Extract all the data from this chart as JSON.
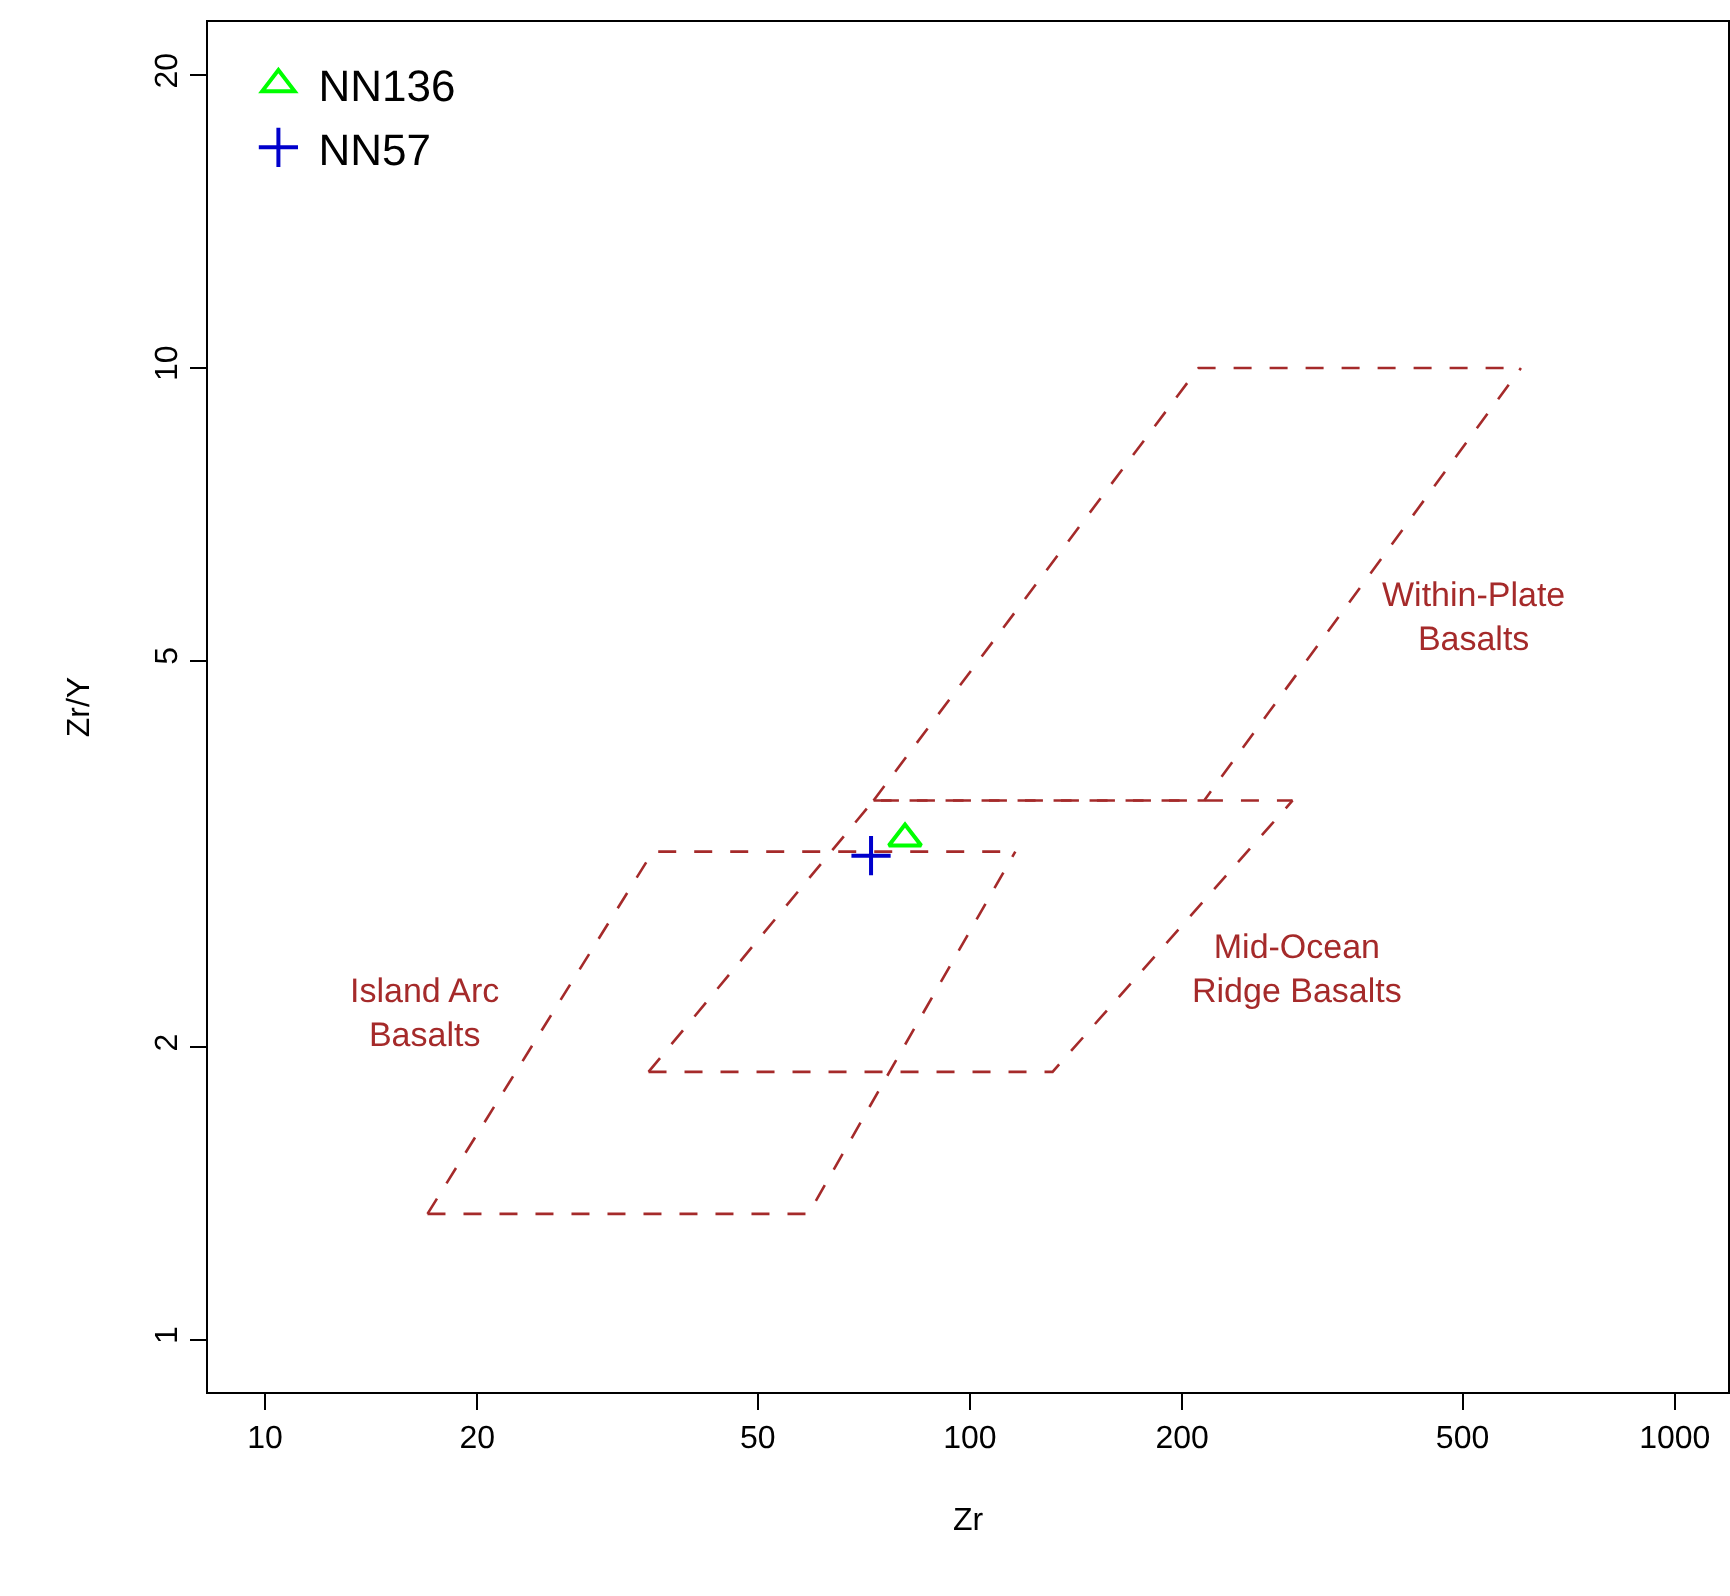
{
  "chart_data": {
    "type": "line",
    "xlabel": "Zr",
    "ylabel": "Zr/Y",
    "log": "xy",
    "grid": false,
    "legend": "top left",
    "xlim": [
      8.3,
      1190
    ],
    "ylim": [
      0.884,
      22.7
    ],
    "xticks": [
      10,
      20,
      50,
      100,
      200,
      500,
      1000
    ],
    "yticks": [
      1,
      2,
      5,
      10,
      20
    ],
    "series": [
      {
        "name": "Island Arc\nBasalts",
        "color": "#a52a2a",
        "line_style": "dashed",
        "marker": "none",
        "x": [
          17,
          35.5,
          116
        ],
        "values": [
          1.348,
          3.18,
          3.18
        ]
      },
      {
        "color": "#a52a2a",
        "line_style": "dashed",
        "marker": "none",
        "x": [
          17,
          59,
          116
        ],
        "values": [
          1.348,
          1.348,
          3.18
        ]
      },
      {
        "color": "#a52a2a",
        "line_style": "dashed",
        "marker": "none",
        "x": [
          35,
          73,
          287
        ],
        "values": [
          1.887,
          3.59,
          3.59
        ]
      },
      {
        "name": "Mid-Ocean\nRidge Basalts",
        "color": "#a52a2a",
        "line_style": "dashed",
        "marker": "none",
        "x": [
          35,
          131,
          287
        ],
        "values": [
          1.887,
          1.887,
          3.59
        ]
      },
      {
        "color": "#a52a2a",
        "line_style": "dashed",
        "marker": "none",
        "x": [
          73,
          211,
          605
        ],
        "values": [
          3.59,
          10,
          10
        ]
      },
      {
        "name": "Within-Plate\nBasalts",
        "color": "#a52a2a",
        "line_style": "dashed",
        "marker": "none",
        "x": [
          73,
          215,
          605
        ],
        "values": [
          3.59,
          3.59,
          10
        ]
      },
      {
        "type": "scatter",
        "name": "NN136",
        "color": "#00ff00",
        "marker": "triangle",
        "x": [
          80.9
        ],
        "values": [
          3.28
        ]
      },
      {
        "type": "scatter",
        "name": "NN57",
        "color": "#0000cc",
        "marker": "cross",
        "x": [
          72.4
        ],
        "values": [
          3.15
        ]
      }
    ]
  }
}
